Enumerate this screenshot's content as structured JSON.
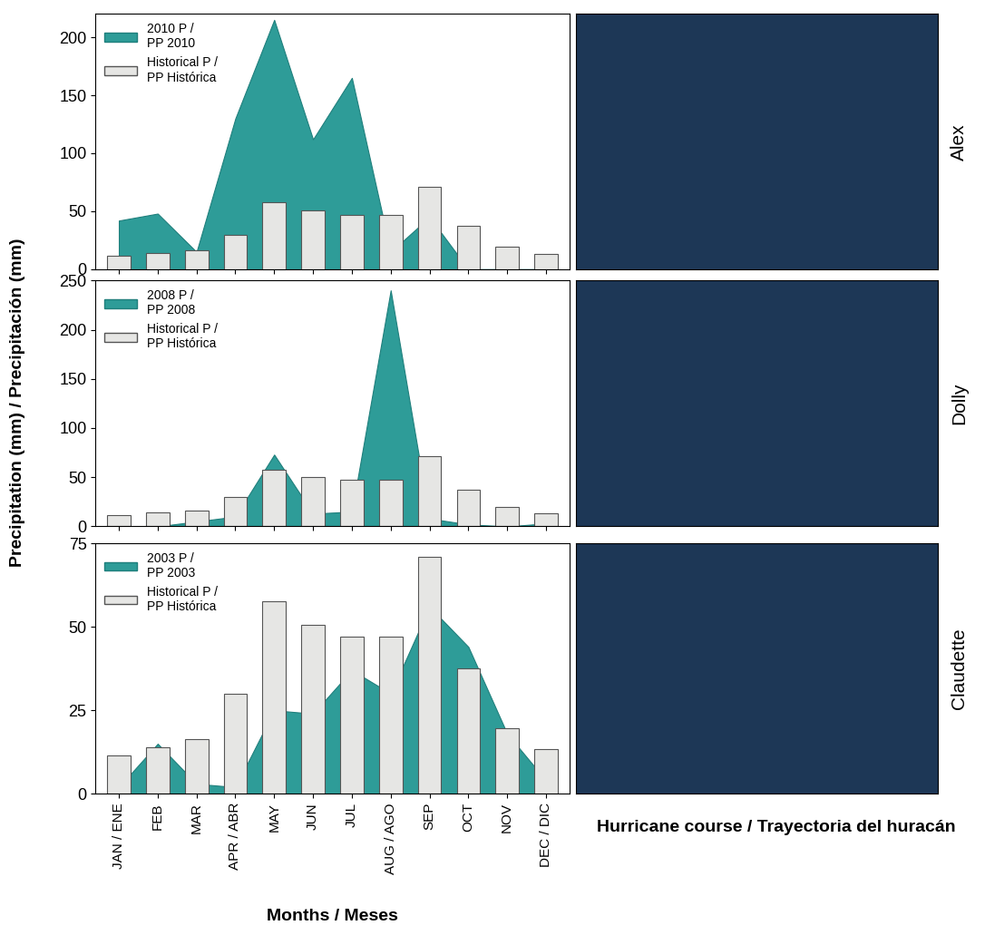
{
  "chart_data": [
    {
      "type": "area",
      "hurricane": "Alex",
      "tick_labels": "y",
      "legend": "upper left",
      "categories": [
        "JAN / ENE",
        "FEB",
        "MAR",
        "APR / ABR",
        "MAY",
        "JUN",
        "JUL",
        "AUG / AGO",
        "SEP",
        "OCT",
        "NOV",
        "DEC / DIC"
      ],
      "series": [
        {
          "name": "2010 P /\nPP 2010",
          "type": "area",
          "color": "#2e9c98",
          "values": [
            42,
            48,
            15,
            130,
            215,
            112,
            165,
            15,
            45,
            0,
            0,
            0
          ]
        },
        {
          "name": "Historical P /\nPP Histórica",
          "type": "bar",
          "color": "#e6e6e4",
          "values": [
            11.5,
            14,
            16.5,
            30,
            57.5,
            50.5,
            47,
            47,
            71,
            37.5,
            19.5,
            13.5
          ]
        }
      ],
      "ylim": [
        0,
        220
      ],
      "yticks": [
        0,
        50,
        100,
        150,
        200
      ]
    },
    {
      "type": "area",
      "hurricane": "Dolly",
      "tick_labels": "y",
      "legend": "upper left",
      "categories": [
        "JAN / ENE",
        "FEB",
        "MAR",
        "APR / ABR",
        "MAY",
        "JUN",
        "JUL",
        "AUG / AGO",
        "SEP",
        "OCT",
        "NOV",
        "DEC / DIC"
      ],
      "series": [
        {
          "name": "2008 P /\nPP 2008",
          "type": "area",
          "color": "#2e9c98",
          "values": [
            0,
            0,
            5,
            10,
            73,
            13,
            15,
            240,
            8,
            2,
            0,
            3
          ]
        },
        {
          "name": "Historical P /\nPP Histórica",
          "type": "bar",
          "color": "#e6e6e4",
          "values": [
            11.5,
            14,
            16.5,
            30,
            57.5,
            50.5,
            47,
            47,
            71,
            37.5,
            19.5,
            13.5
          ]
        }
      ],
      "ylim": [
        0,
        250
      ],
      "yticks": [
        0,
        50,
        100,
        150,
        200,
        250
      ]
    },
    {
      "type": "area",
      "hurricane": "Claudette",
      "legend": "upper left",
      "categories": [
        "JAN / ENE",
        "FEB",
        "MAR",
        "APR / ABR",
        "MAY",
        "JUN",
        "JUL",
        "AUG / AGO",
        "SEP",
        "OCT",
        "NOV",
        "DEC / DIC"
      ],
      "series": [
        {
          "name": "2003 P /\nPP 2003",
          "type": "area",
          "color": "#2e9c98",
          "values": [
            2,
            15,
            3,
            2,
            25,
            24,
            37,
            30,
            56,
            44,
            18,
            4
          ]
        },
        {
          "name": "Historical P /\nPP Histórica",
          "type": "bar",
          "color": "#e6e6e4",
          "values": [
            11.5,
            14,
            16.5,
            30,
            57.5,
            50.5,
            47,
            47,
            71,
            37.5,
            19.5,
            13.5
          ]
        }
      ],
      "ylim": [
        0,
        75
      ],
      "yticks": [
        0,
        25,
        50,
        75
      ]
    }
  ],
  "y_label": "Precipitation (mm) / Precipitación (mm)",
  "x_label": "Months / Meses",
  "map_title": "Hurricane course / Trayectoria del huracán"
}
